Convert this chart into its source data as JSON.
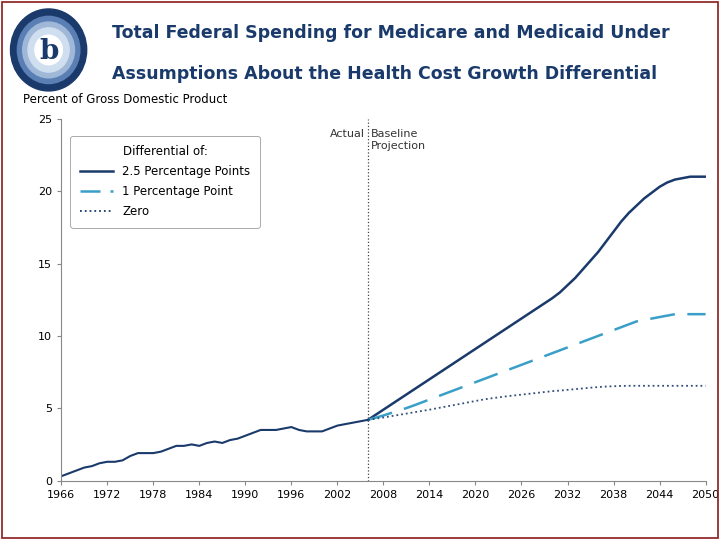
{
  "title_line1": "Total Federal Spending for Medicare and Medicaid Under",
  "title_line2": "Assumptions About the Health Cost Growth Differential",
  "ylabel": "Percent of Gross Domestic Product",
  "ylim": [
    0,
    25
  ],
  "yticks": [
    0,
    5,
    10,
    15,
    20,
    25
  ],
  "xlim": [
    1966,
    2050
  ],
  "xticks": [
    1966,
    1972,
    1978,
    1984,
    1990,
    1996,
    2002,
    2008,
    2014,
    2020,
    2026,
    2032,
    2038,
    2044,
    2050
  ],
  "divider_year": 2006,
  "actual_label": "Actual",
  "projection_label": "Baseline\nProjection",
  "legend_title": "Differential of:",
  "legend_entries": [
    "2.5 Percentage Points",
    "1 Percentage Point",
    "Zero"
  ],
  "color_solid": "#1a3a6b",
  "color_dashed": "#3a9fc8",
  "color_dotted": "#1a3a6b",
  "bg_color": "#ffffff",
  "header_bg": "#ffffff",
  "header_line_color": "#8b1a1a",
  "years_actual": [
    1966,
    1967,
    1968,
    1969,
    1970,
    1971,
    1972,
    1973,
    1974,
    1975,
    1976,
    1977,
    1978,
    1979,
    1980,
    1981,
    1982,
    1983,
    1984,
    1985,
    1986,
    1987,
    1988,
    1989,
    1990,
    1991,
    1992,
    1993,
    1994,
    1995,
    1996,
    1997,
    1998,
    1999,
    2000,
    2001,
    2002,
    2003,
    2004,
    2005,
    2006
  ],
  "values_actual": [
    0.3,
    0.5,
    0.7,
    0.9,
    1.0,
    1.2,
    1.3,
    1.3,
    1.4,
    1.7,
    1.9,
    1.9,
    1.9,
    2.0,
    2.2,
    2.4,
    2.4,
    2.5,
    2.4,
    2.6,
    2.7,
    2.6,
    2.8,
    2.9,
    3.1,
    3.3,
    3.5,
    3.5,
    3.5,
    3.6,
    3.7,
    3.5,
    3.4,
    3.4,
    3.4,
    3.6,
    3.8,
    3.9,
    4.0,
    4.1,
    4.2
  ],
  "years_proj": [
    2006,
    2007,
    2008,
    2009,
    2010,
    2011,
    2012,
    2013,
    2014,
    2015,
    2016,
    2017,
    2018,
    2019,
    2020,
    2021,
    2022,
    2023,
    2024,
    2025,
    2026,
    2027,
    2028,
    2029,
    2030,
    2031,
    2032,
    2033,
    2034,
    2035,
    2036,
    2037,
    2038,
    2039,
    2040,
    2041,
    2042,
    2043,
    2044,
    2045,
    2046,
    2047,
    2048,
    2049,
    2050
  ],
  "values_solid": [
    4.2,
    4.55,
    4.9,
    5.25,
    5.6,
    5.95,
    6.3,
    6.65,
    7.0,
    7.35,
    7.7,
    8.05,
    8.4,
    8.75,
    9.1,
    9.45,
    9.8,
    10.15,
    10.5,
    10.85,
    11.2,
    11.55,
    11.9,
    12.25,
    12.6,
    13.0,
    13.5,
    14.0,
    14.6,
    15.2,
    15.8,
    16.5,
    17.2,
    17.9,
    18.5,
    19.0,
    19.5,
    19.9,
    20.3,
    20.6,
    20.8,
    20.9,
    21.0,
    21.0,
    21.0
  ],
  "values_dashed": [
    4.2,
    4.35,
    4.5,
    4.67,
    4.84,
    5.01,
    5.2,
    5.4,
    5.6,
    5.8,
    6.0,
    6.2,
    6.4,
    6.6,
    6.8,
    7.0,
    7.2,
    7.4,
    7.6,
    7.8,
    8.0,
    8.2,
    8.4,
    8.6,
    8.8,
    9.0,
    9.2,
    9.4,
    9.6,
    9.8,
    10.0,
    10.2,
    10.4,
    10.6,
    10.8,
    11.0,
    11.1,
    11.2,
    11.3,
    11.4,
    11.5,
    11.5,
    11.5,
    11.5,
    11.5
  ],
  "values_dotted": [
    4.2,
    4.28,
    4.36,
    4.45,
    4.54,
    4.63,
    4.72,
    4.81,
    4.9,
    5.0,
    5.1,
    5.2,
    5.3,
    5.4,
    5.5,
    5.6,
    5.68,
    5.75,
    5.82,
    5.88,
    5.94,
    6.0,
    6.06,
    6.12,
    6.18,
    6.22,
    6.27,
    6.32,
    6.37,
    6.42,
    6.46,
    6.5,
    6.52,
    6.54,
    6.55,
    6.55,
    6.55,
    6.55,
    6.55,
    6.55,
    6.55,
    6.55,
    6.55,
    6.55,
    6.55
  ]
}
